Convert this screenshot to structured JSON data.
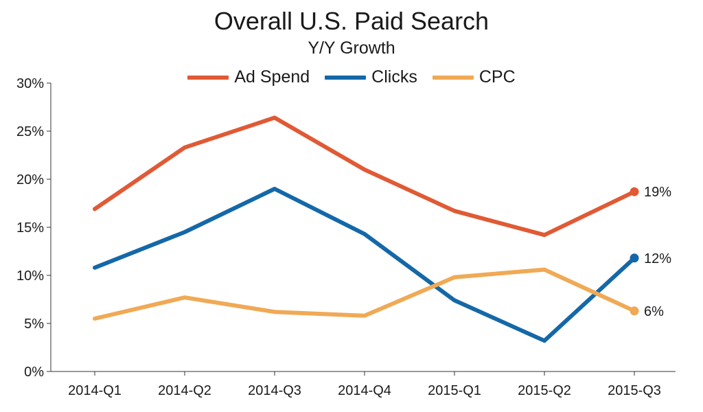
{
  "chart_data": {
    "type": "line",
    "title": "Overall U.S. Paid Search",
    "subtitle": "Y/Y Growth",
    "categories": [
      "2014-Q1",
      "2014-Q2",
      "2014-Q3",
      "2014-Q4",
      "2015-Q1",
      "2015-Q2",
      "2015-Q3"
    ],
    "ylim": [
      0,
      30
    ],
    "yticks": [
      0,
      5,
      10,
      15,
      20,
      25,
      30
    ],
    "ytick_labels": [
      "0%",
      "5%",
      "10%",
      "15%",
      "20%",
      "25%",
      "30%"
    ],
    "legend_position": "top-center",
    "grid": false,
    "series": [
      {
        "name": "Ad Spend",
        "color": "#e05a35",
        "values": [
          16.9,
          23.3,
          26.4,
          21.0,
          16.7,
          14.2,
          18.7
        ],
        "end_label": "19%"
      },
      {
        "name": "Clicks",
        "color": "#1468a8",
        "values": [
          10.8,
          14.5,
          19.0,
          14.3,
          7.4,
          3.2,
          11.8
        ],
        "end_label": "12%"
      },
      {
        "name": "CPC",
        "color": "#f0a955",
        "values": [
          5.5,
          7.7,
          6.2,
          5.8,
          9.8,
          10.6,
          6.3
        ],
        "end_label": "6%"
      }
    ]
  }
}
